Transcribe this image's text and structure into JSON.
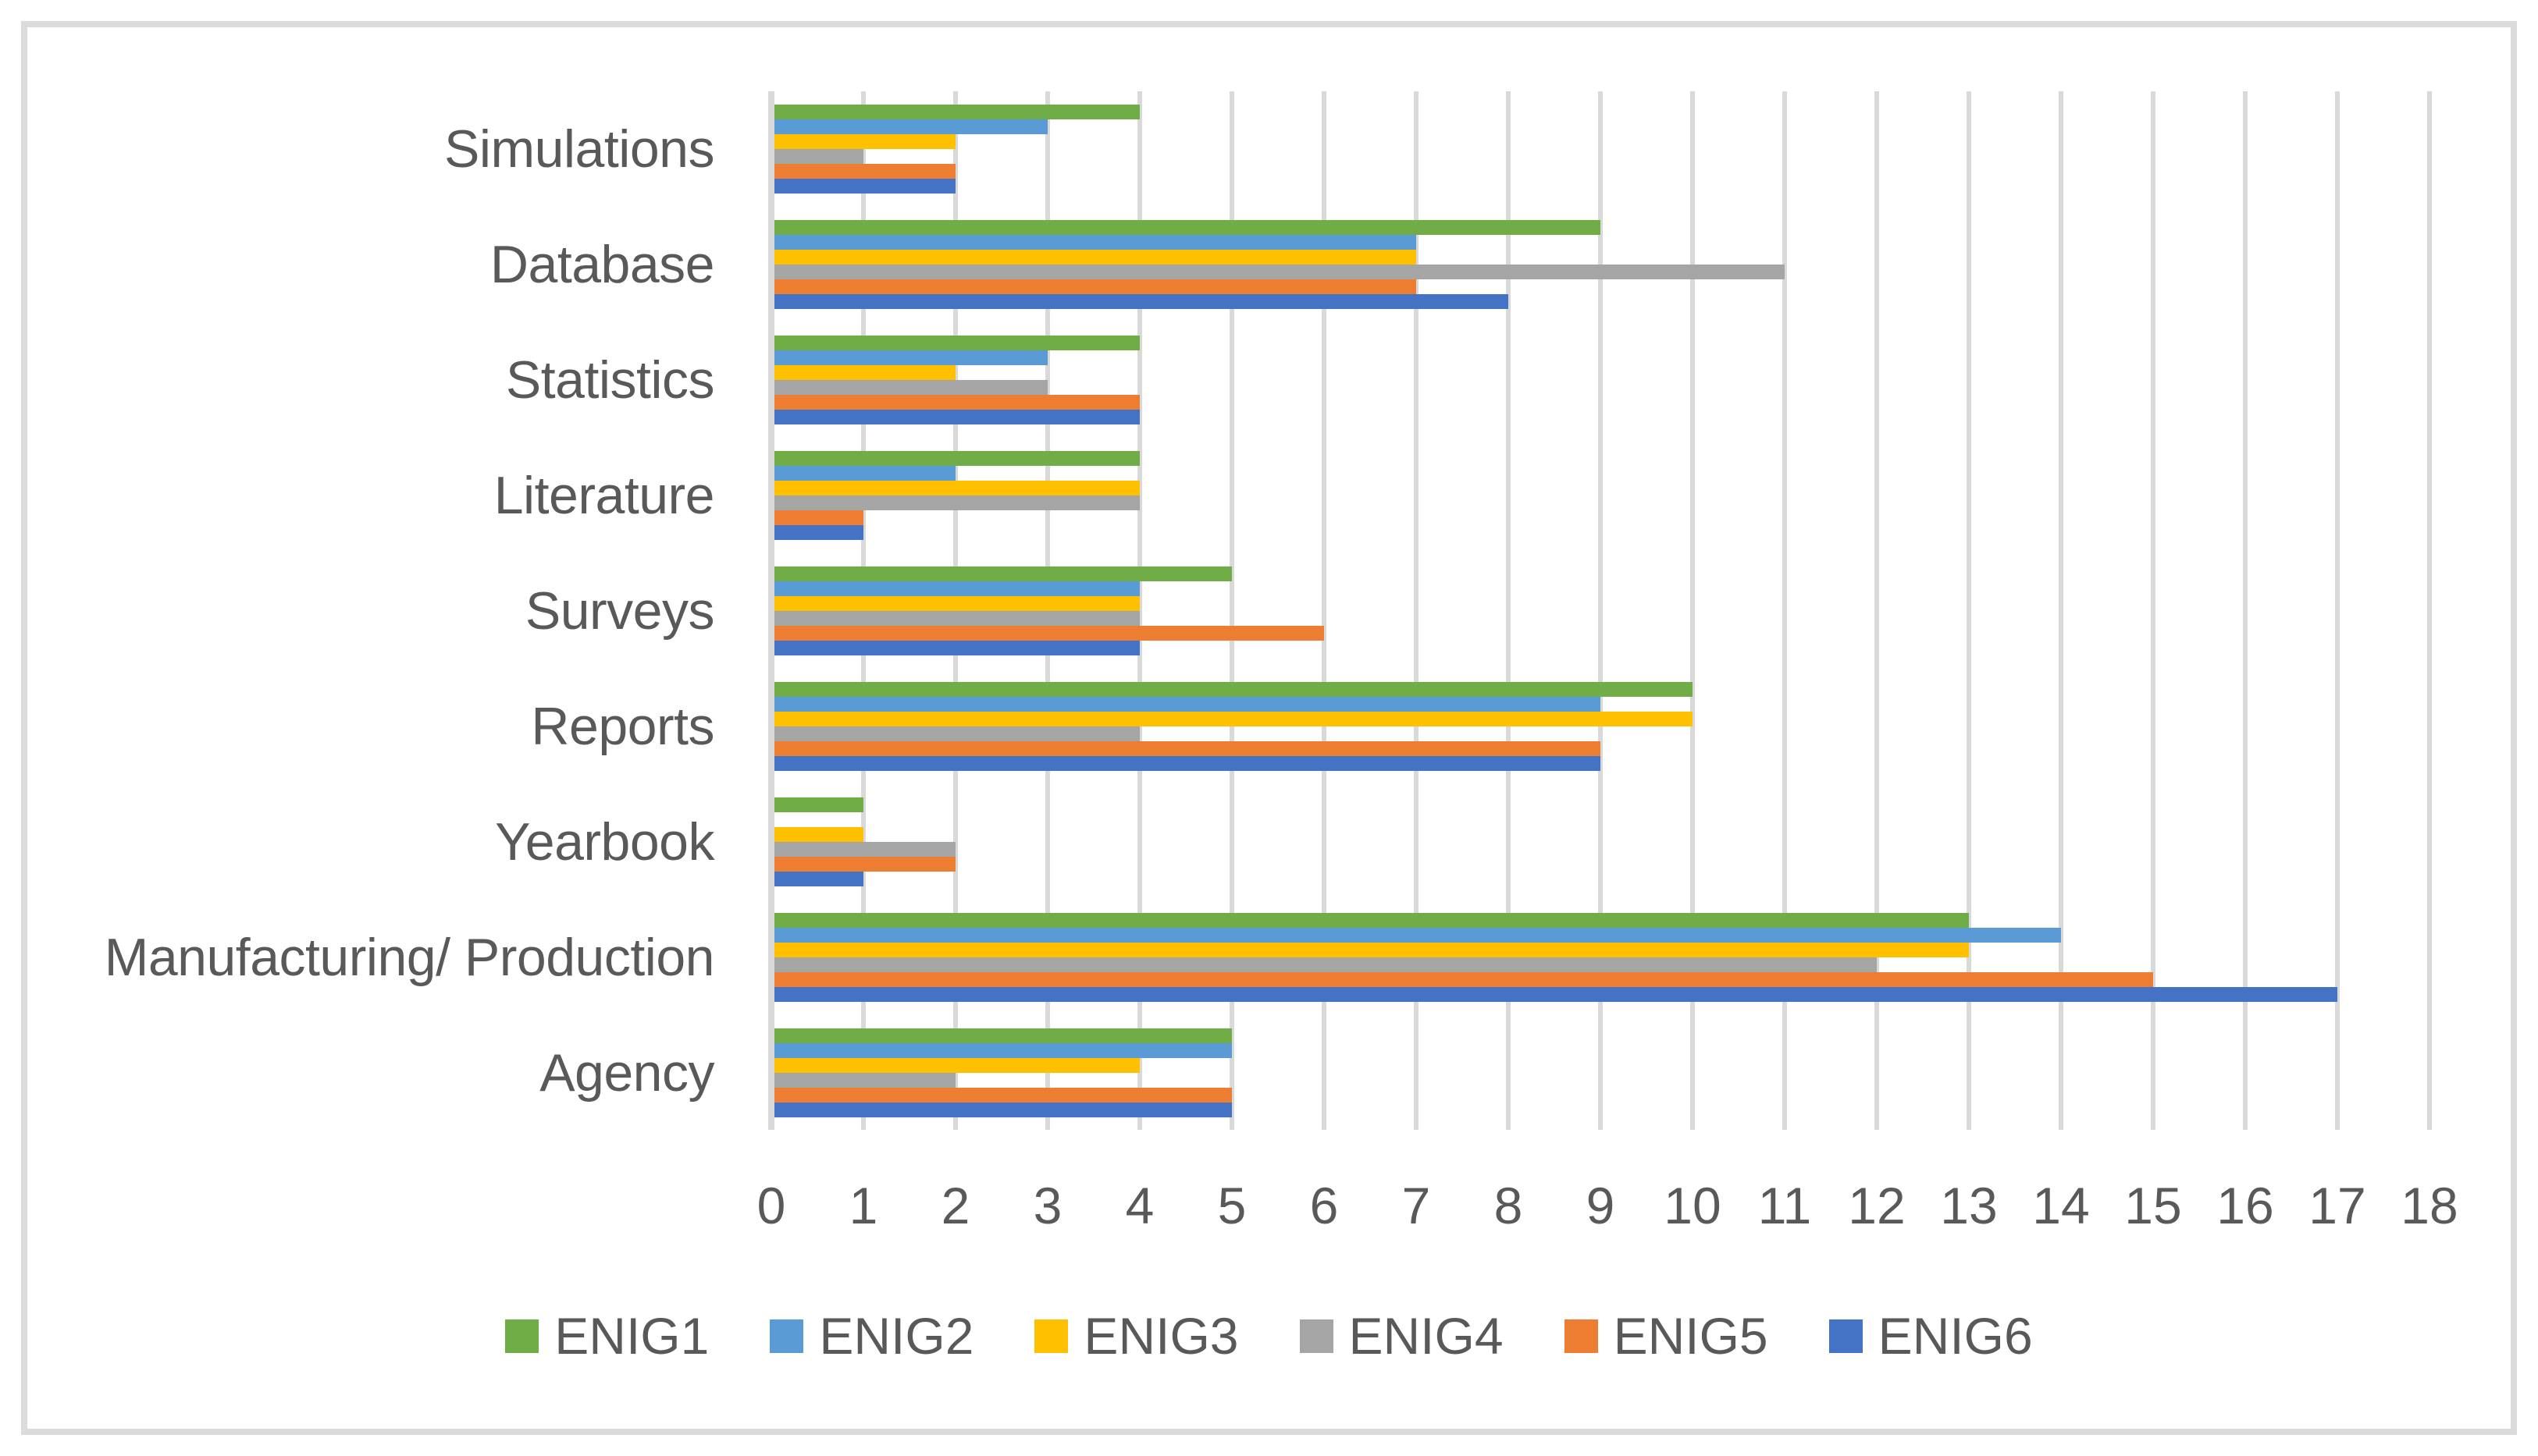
{
  "chart_data": {
    "type": "bar",
    "orientation": "horizontal",
    "title": "",
    "xlabel": "",
    "ylabel": "",
    "grid": true,
    "categories": [
      "Simulations",
      "Database",
      "Statistics",
      "Literature",
      "Surveys",
      "Reports",
      "Yearbook",
      "Manufacturing/ Production",
      "Agency"
    ],
    "series": [
      {
        "name": "ENIG1",
        "color": "#70AD47",
        "values": [
          4,
          9,
          4,
          4,
          5,
          10,
          1,
          13,
          5
        ]
      },
      {
        "name": "ENIG2",
        "color": "#5B9BD5",
        "values": [
          3,
          7,
          3,
          2,
          4,
          9,
          0,
          14,
          5
        ]
      },
      {
        "name": "ENIG3",
        "color": "#FFC000",
        "values": [
          2,
          7,
          2,
          4,
          4,
          10,
          1,
          13,
          4
        ]
      },
      {
        "name": "ENIG4",
        "color": "#A5A5A5",
        "values": [
          1,
          11,
          3,
          4,
          4,
          4,
          2,
          12,
          2
        ]
      },
      {
        "name": "ENIG5",
        "color": "#ED7D31",
        "values": [
          2,
          7,
          4,
          1,
          6,
          9,
          2,
          15,
          5
        ]
      },
      {
        "name": "ENIG6",
        "color": "#4472C4",
        "values": [
          2,
          8,
          4,
          1,
          4,
          9,
          1,
          17,
          5
        ]
      }
    ],
    "x_axis": {
      "min": 0,
      "max": 18,
      "step": 1,
      "tick_labels": [
        "0",
        "1",
        "2",
        "3",
        "4",
        "5",
        "6",
        "7",
        "8",
        "9",
        "10",
        "11",
        "12",
        "13",
        "14",
        "15",
        "16",
        "17",
        "18"
      ]
    },
    "legend": {
      "position": "bottom",
      "entries": [
        "ENIG1",
        "ENIG2",
        "ENIG3",
        "ENIG4",
        "ENIG5",
        "ENIG6"
      ]
    },
    "style": {
      "gridline_color": "#D9D9D9",
      "axis_line_color": "#D9D9D9",
      "text_color": "#595959",
      "background_color": "#FFFFFF",
      "frame_border_color": "#DBDBDB"
    }
  }
}
